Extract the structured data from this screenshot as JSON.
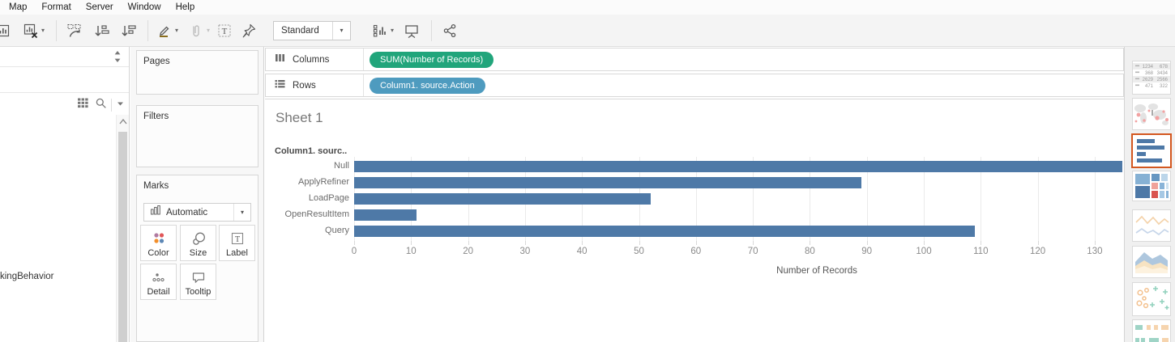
{
  "menu": {
    "items": [
      "Map",
      "Format",
      "Server",
      "Window",
      "Help"
    ]
  },
  "toolbar": {
    "view_mode": "Standard",
    "icons": [
      {
        "name": "new-worksheet-icon",
        "clipped": true
      },
      {
        "name": "clear-sheet-icon",
        "caret": true
      },
      {
        "name": "divider"
      },
      {
        "name": "swap-axes-icon"
      },
      {
        "name": "sort-ascending-icon"
      },
      {
        "name": "sort-descending-icon"
      },
      {
        "name": "divider"
      },
      {
        "name": "highlight-icon",
        "caret": true
      },
      {
        "name": "paperclip-icon",
        "caret": true,
        "disabled": true
      },
      {
        "name": "text-label-icon"
      },
      {
        "name": "pin-icon"
      },
      {
        "name": "view-mode-dropdown"
      },
      {
        "name": "show-cards-icon",
        "caret": true
      },
      {
        "name": "presentation-icon"
      },
      {
        "name": "divider"
      },
      {
        "name": "share-icon"
      }
    ]
  },
  "data_pane": {
    "partial_field_label": "kingBehavior"
  },
  "cards": {
    "pages_label": "Pages",
    "filters_label": "Filters",
    "marks_label": "Marks",
    "mark_type": "Automatic",
    "mark_buttons": [
      {
        "label": "Color",
        "icon": "color-icon"
      },
      {
        "label": "Size",
        "icon": "size-icon"
      },
      {
        "label": "Label",
        "icon": "label-icon"
      },
      {
        "label": "Detail",
        "icon": "detail-icon"
      },
      {
        "label": "Tooltip",
        "icon": "tooltip-icon"
      }
    ]
  },
  "shelves": {
    "columns_label": "Columns",
    "rows_label": "Rows",
    "columns_pills": [
      {
        "text": "SUM(Number of Records)",
        "color": "#21a57b"
      }
    ],
    "rows_pills": [
      {
        "text": "Column1. source.Action",
        "color": "#4e9bbf"
      }
    ]
  },
  "chart_data": {
    "type": "bar",
    "orientation": "horizontal",
    "title": "Sheet 1",
    "row_header": "Column1. sourc..",
    "categories": [
      "Null",
      "ApplyRefiner",
      "LoadPage",
      "OpenResultItem",
      "Query"
    ],
    "values": [
      135,
      89,
      52,
      11,
      109
    ],
    "xlabel": "Number of Records",
    "xlim": [
      0,
      135
    ],
    "x_ticks": [
      0,
      10,
      20,
      30,
      40,
      50,
      60,
      70,
      80,
      90,
      100,
      110,
      120,
      130
    ],
    "grid": true,
    "bar_color": "#4e79a7",
    "legend": "none"
  },
  "show_me": {
    "selected_border": "#d3571f",
    "items": [
      {
        "type": "text-table",
        "name": "text-table-thumbnail",
        "selected": false
      },
      {
        "type": "symbol-map",
        "name": "symbol-map-thumbnail",
        "selected": false
      },
      {
        "type": "horizontal-bars",
        "name": "horizontal-bars-thumbnail",
        "selected": true
      },
      {
        "type": "treemap",
        "name": "treemap-thumbnail",
        "selected": false
      },
      {
        "type": "line-chart",
        "name": "line-chart-thumbnail",
        "selected": false
      },
      {
        "type": "area-chart",
        "name": "area-chart-thumbnail",
        "selected": false
      },
      {
        "type": "scatter-plot",
        "name": "scatter-plot-thumbnail",
        "selected": false
      },
      {
        "type": "gantt",
        "name": "gantt-thumbnail",
        "selected": false
      }
    ]
  }
}
